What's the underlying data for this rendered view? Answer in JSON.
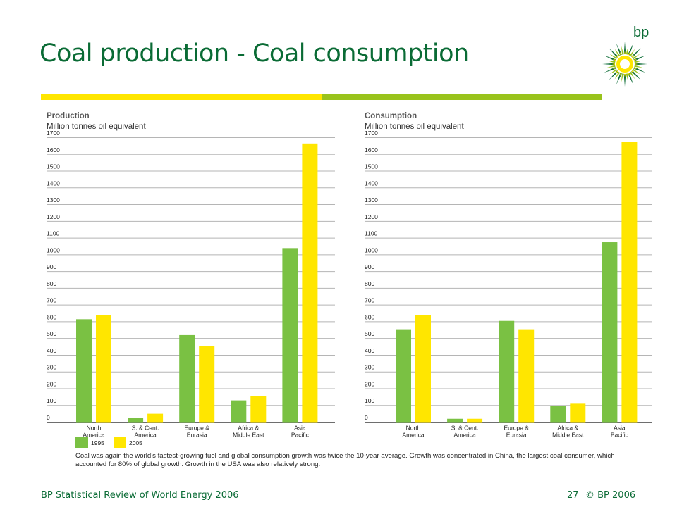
{
  "slide": {
    "title": "Coal production - Coal consumption",
    "logo_text": "bp",
    "caption": "Coal was again the world’s fastest-growing fuel and global consumption growth was twice the 10-year average. Growth was concentrated in China, the largest coal consumer, which accounted for 80% of global growth. Growth in the USA was also relatively strong.",
    "footer": {
      "source": "BP Statistical Review of World Energy 2006",
      "page": "27",
      "copyright": "© BP 2006"
    }
  },
  "colors": {
    "brand_green": "#0a6b35",
    "series_1995": "#7ac143",
    "series_2005": "#ffe600",
    "rule_yellow": "#ffe600",
    "rule_green": "#99c31c"
  },
  "chart_data": [
    {
      "type": "bar",
      "title": "Production",
      "ylabel": "Million tonnes oil equivalent",
      "ylim": [
        0,
        1700
      ],
      "yticks": [
        "0",
        "100",
        "200",
        "300",
        "400",
        "500",
        "600",
        "700",
        "800",
        "900",
        "1000",
        "1100",
        "1200",
        "1300",
        "1400",
        "1500",
        "1600",
        "1700"
      ],
      "categories": [
        [
          "North",
          "America"
        ],
        [
          "S. & Cent.",
          "America"
        ],
        [
          "Europe &",
          "Eurasia"
        ],
        [
          "Africa &",
          "Middle East"
        ],
        [
          "Asia",
          "Pacific"
        ]
      ],
      "series": [
        {
          "name": "1995",
          "color": "#7ac143",
          "values": [
            615,
            25,
            520,
            130,
            1040
          ]
        },
        {
          "name": "2005",
          "color": "#ffe600",
          "values": [
            640,
            50,
            455,
            155,
            1665
          ]
        }
      ],
      "grid": true,
      "legend": "bottom-left"
    },
    {
      "type": "bar",
      "title": "Consumption",
      "ylabel": "Million tonnes oil equivalent",
      "ylim": [
        0,
        1700
      ],
      "yticks": [
        "0",
        "100",
        "200",
        "300",
        "400",
        "500",
        "600",
        "700",
        "800",
        "900",
        "1000",
        "1100",
        "1200",
        "1300",
        "1400",
        "1500",
        "1600",
        "1700"
      ],
      "categories": [
        [
          "North",
          "America"
        ],
        [
          "S. & Cent.",
          "America"
        ],
        [
          "Europe &",
          "Eurasia"
        ],
        [
          "Africa &",
          "Middle East"
        ],
        [
          "Asia",
          "Pacific"
        ]
      ],
      "series": [
        {
          "name": "1995",
          "color": "#7ac143",
          "values": [
            555,
            20,
            605,
            95,
            1075
          ]
        },
        {
          "name": "2005",
          "color": "#ffe600",
          "values": [
            640,
            20,
            555,
            110,
            1675
          ]
        }
      ],
      "grid": true
    }
  ]
}
